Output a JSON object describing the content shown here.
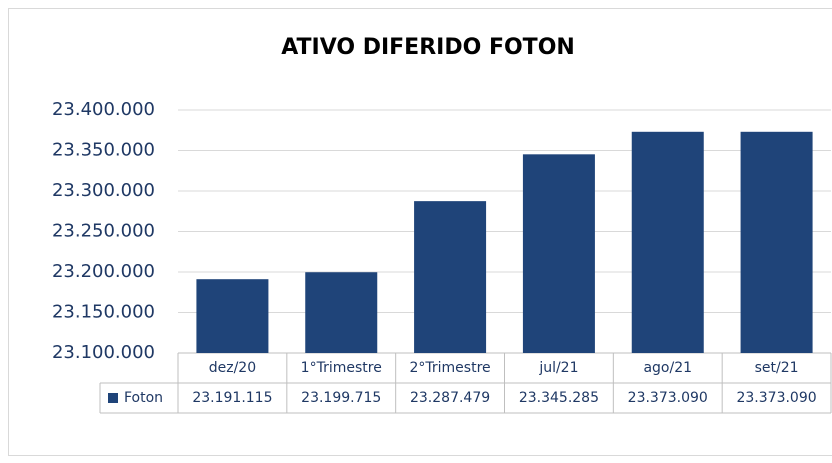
{
  "chart_data": {
    "type": "bar",
    "title": "ATIVO DIFERIDO FOTON",
    "categories": [
      "dez/20",
      "1°Trimestre",
      "2°Trimestre",
      "jul/21",
      "ago/21",
      "set/21"
    ],
    "series": [
      {
        "name": "Foton",
        "color": "#1f4479",
        "values": [
          23191115,
          23199715,
          23287479,
          23345285,
          23373090,
          23373090
        ],
        "value_labels": [
          "23.191.115",
          "23.199.715",
          "23.287.479",
          "23.345.285",
          "23.373.090",
          "23.373.090"
        ]
      }
    ],
    "ylim": [
      23100000,
      23400000
    ],
    "yticks": [
      {
        "value": 23100000,
        "label": "23.100.000"
      },
      {
        "value": 23150000,
        "label": "23.150.000"
      },
      {
        "value": 23200000,
        "label": "23.200.000"
      },
      {
        "value": 23250000,
        "label": "23.250.000"
      },
      {
        "value": 23300000,
        "label": "23.300.000"
      },
      {
        "value": 23350000,
        "label": "23.350.000"
      },
      {
        "value": 23400000,
        "label": "23.400.000"
      }
    ],
    "grid": true
  }
}
